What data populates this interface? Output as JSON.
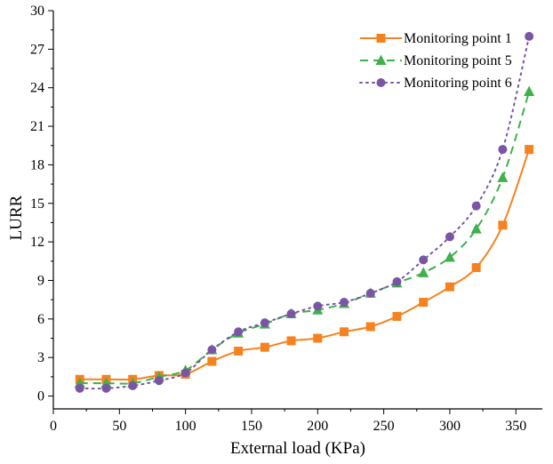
{
  "chart_data": {
    "type": "line",
    "title": "",
    "xlabel": "External load (KPa)",
    "ylabel": "LURR",
    "xlim": [
      0,
      370
    ],
    "ylim": [
      -1,
      30
    ],
    "xticks": [
      0,
      50,
      100,
      150,
      200,
      250,
      300,
      350
    ],
    "yticks": [
      0,
      3,
      6,
      9,
      12,
      15,
      18,
      21,
      24,
      27,
      30
    ],
    "grid": false,
    "legend_position": "top-right",
    "series": [
      {
        "name": "Monitoring point 1",
        "color": "#f5821f",
        "line_style": "solid",
        "marker": "square",
        "x": [
          20,
          40,
          60,
          80,
          100,
          120,
          140,
          160,
          180,
          200,
          220,
          240,
          260,
          280,
          300,
          320,
          340,
          360
        ],
        "y": [
          1.3,
          1.3,
          1.3,
          1.6,
          1.7,
          2.7,
          3.5,
          3.8,
          4.3,
          4.5,
          5.0,
          5.4,
          6.2,
          7.3,
          8.5,
          10.0,
          13.3,
          19.2
        ]
      },
      {
        "name": "Monitoring point 5",
        "color": "#3fb04a",
        "line_style": "dashed",
        "marker": "triangle",
        "x": [
          20,
          40,
          60,
          80,
          100,
          120,
          140,
          160,
          180,
          200,
          220,
          240,
          260,
          280,
          300,
          320,
          340,
          360
        ],
        "y": [
          1.0,
          1.0,
          1.0,
          1.5,
          2.0,
          3.6,
          4.9,
          5.6,
          6.4,
          6.7,
          7.2,
          8.0,
          8.8,
          9.6,
          10.8,
          13.0,
          17.0,
          23.7
        ]
      },
      {
        "name": "Monitoring point 6",
        "color": "#7b55a5",
        "line_style": "dotted",
        "marker": "circle",
        "x": [
          20,
          40,
          60,
          80,
          100,
          120,
          140,
          160,
          180,
          200,
          220,
          240,
          260,
          280,
          300,
          320,
          340,
          360
        ],
        "y": [
          0.6,
          0.6,
          0.8,
          1.2,
          1.8,
          3.6,
          5.0,
          5.7,
          6.4,
          7.0,
          7.3,
          8.0,
          8.9,
          10.6,
          12.4,
          14.8,
          19.2,
          28.0
        ]
      }
    ]
  }
}
